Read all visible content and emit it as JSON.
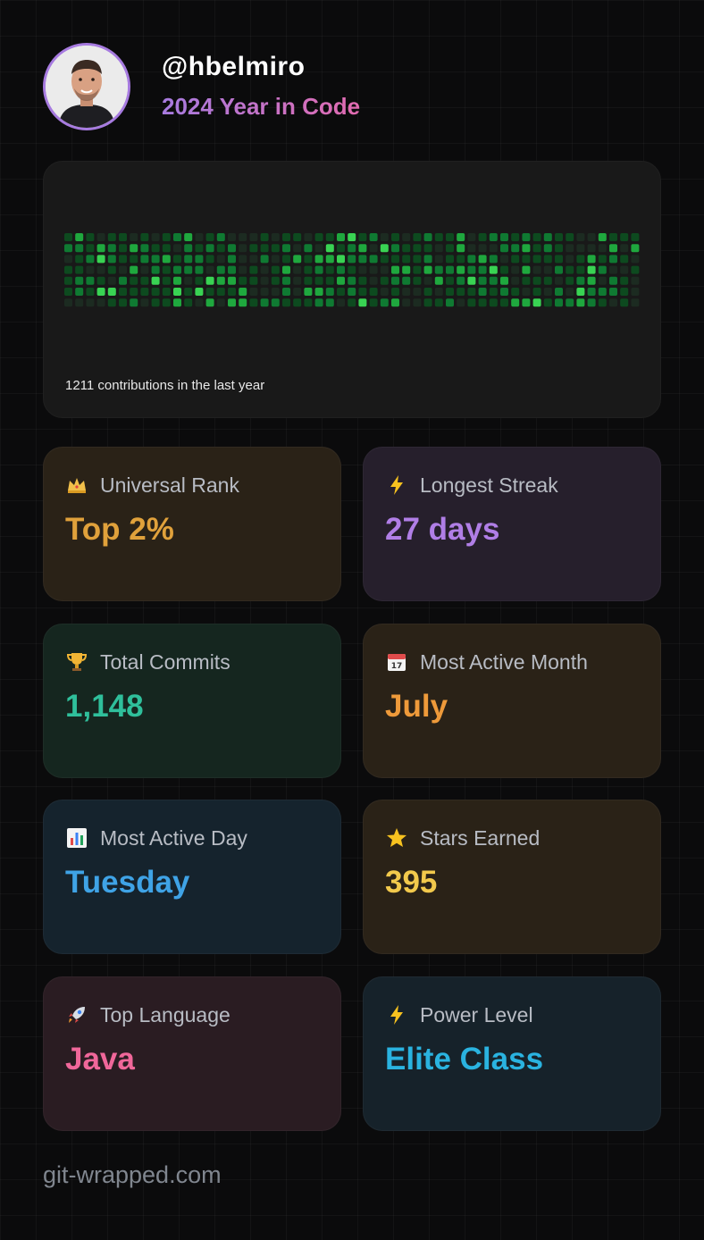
{
  "profile": {
    "username": "@hbelmiro",
    "subtitle": "2024 Year in Code"
  },
  "contributions": {
    "caption": "1211 contributions in the last year",
    "levels_colors": [
      "#1c2b21",
      "#0d4a1f",
      "#0f7a32",
      "#1fa83e",
      "#39d353"
    ]
  },
  "stats": [
    {
      "id": "universal-rank",
      "icon": "crown-icon",
      "label": "Universal Rank",
      "value": "Top 2%",
      "color": "#e0a13b",
      "bg": "#2a2217"
    },
    {
      "id": "longest-streak",
      "icon": "lightning-icon",
      "label": "Longest Streak",
      "value": "27 days",
      "color": "#b07ee6",
      "bg": "#261f2c"
    },
    {
      "id": "total-commits",
      "icon": "trophy-icon",
      "label": "Total Commits",
      "value": "1,148",
      "color": "#2fbf9b",
      "bg": "#15261f"
    },
    {
      "id": "most-active-month",
      "icon": "calendar-icon",
      "label": "Most Active Month",
      "value": "July",
      "color": "#ee9a3a",
      "bg": "#2a2217"
    },
    {
      "id": "most-active-day",
      "icon": "bar-chart-icon",
      "label": "Most Active Day",
      "value": "Tuesday",
      "color": "#3fa3e6",
      "bg": "#15232d"
    },
    {
      "id": "stars-earned",
      "icon": "star-icon",
      "label": "Stars Earned",
      "value": "395",
      "color": "#f2c94c",
      "bg": "#2a2217"
    },
    {
      "id": "top-language",
      "icon": "rocket-icon",
      "label": "Top Language",
      "value": "Java",
      "color": "#f0679a",
      "bg": "#2a1c22"
    },
    {
      "id": "power-level",
      "icon": "lightning-icon",
      "label": "Power Level",
      "value": "Elite Class",
      "color": "#2ab3e0",
      "bg": "#16222a"
    }
  ],
  "footer": {
    "site": "git-wrapped.com"
  }
}
